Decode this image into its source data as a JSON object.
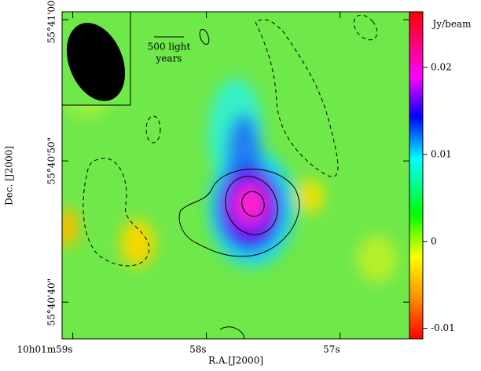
{
  "chart_data": {
    "type": "image",
    "xlabel": "R.A.[J2000]",
    "ylabel": "Dec. [J2000]",
    "colorbar_label": "Jy/beam",
    "scale_bar_label": [
      "500 light",
      "years"
    ],
    "xlim": [
      59.08,
      56.48
    ],
    "xticks": [
      {
        "value": 59,
        "label": "10h01m59s"
      },
      {
        "value": 58,
        "label": "58s"
      },
      {
        "value": 57,
        "label": "57s"
      }
    ],
    "ylim": [
      37.4,
      60.56
    ],
    "yticks": [
      {
        "value": 60,
        "label": "55°41'00\""
      },
      {
        "value": 50,
        "label": "55°40'50\""
      },
      {
        "value": 40,
        "label": "55°40'40\""
      }
    ],
    "clim": [
      -0.0112,
      0.0264
    ],
    "cticks": [
      -0.01,
      0,
      0.01,
      0.02
    ]
  }
}
